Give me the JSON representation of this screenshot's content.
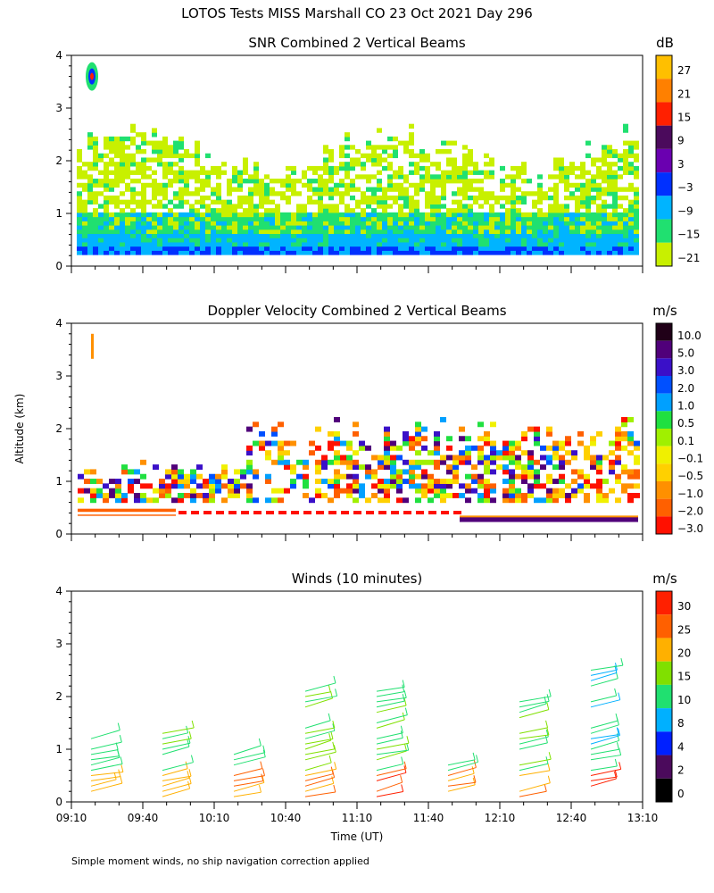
{
  "page_title": "LOTOS Tests MISS Marshall CO  23 Oct 2021 Day 296",
  "footnote": "Simple moment winds, no ship navigation correction applied",
  "chart_data": [
    {
      "type": "heatmap",
      "title": "SNR Combined 2 Vertical Beams",
      "ylabel": "",
      "ylim": [
        0,
        4
      ],
      "yticks": [
        "0",
        "1",
        "2",
        "3",
        "4"
      ],
      "colorbar_unit": "dB",
      "colorbar_labels": [
        "27",
        "21",
        "15",
        "9",
        "3",
        "−3",
        "−9",
        "−15",
        "−21"
      ],
      "colorbar_colors": [
        "#ffbf00",
        "#ff8000",
        "#ff2000",
        "#4b0a5c",
        "#6a00b0",
        "#0030ff",
        "#00b4ff",
        "#20e070",
        "#c8f000"
      ]
    },
    {
      "type": "heatmap",
      "title": "Doppler Velocity Combined 2 Vertical Beams",
      "ylabel": "Altitude (km)",
      "ylim": [
        0,
        4
      ],
      "yticks": [
        "0",
        "1",
        "2",
        "3",
        "4"
      ],
      "colorbar_unit": "m/s",
      "colorbar_labels": [
        "10.0",
        "5.0",
        "3.0",
        "2.0",
        "1.0",
        "0.5",
        "0.1",
        "−0.1",
        "−0.5",
        "−1.0",
        "−2.0",
        "−3.0"
      ],
      "colorbar_colors": [
        "#200018",
        "#50007a",
        "#3a10c8",
        "#0050ff",
        "#00a0ff",
        "#20e040",
        "#a0f000",
        "#f0f000",
        "#ffd000",
        "#ff9000",
        "#ff6000",
        "#ff1000"
      ]
    },
    {
      "type": "scatter",
      "title": "Winds (10 minutes)",
      "xlabel": "Time (UT)",
      "ylim": [
        0,
        4
      ],
      "yticks": [
        "0",
        "1",
        "2",
        "3",
        "4"
      ],
      "xticks": [
        "09:10",
        "09:40",
        "10:10",
        "10:40",
        "11:10",
        "11:40",
        "12:10",
        "12:40",
        "13:10"
      ],
      "colorbar_unit": "m/s",
      "colorbar_labels": [
        "30",
        "25",
        "20",
        "15",
        "10",
        "8",
        "4",
        "2",
        "0"
      ],
      "colorbar_colors": [
        "#ff2000",
        "#ff6000",
        "#ffb000",
        "#80e000",
        "#20e070",
        "#00b0ff",
        "#0020ff",
        "#4b0a5c",
        "#000000"
      ]
    }
  ]
}
